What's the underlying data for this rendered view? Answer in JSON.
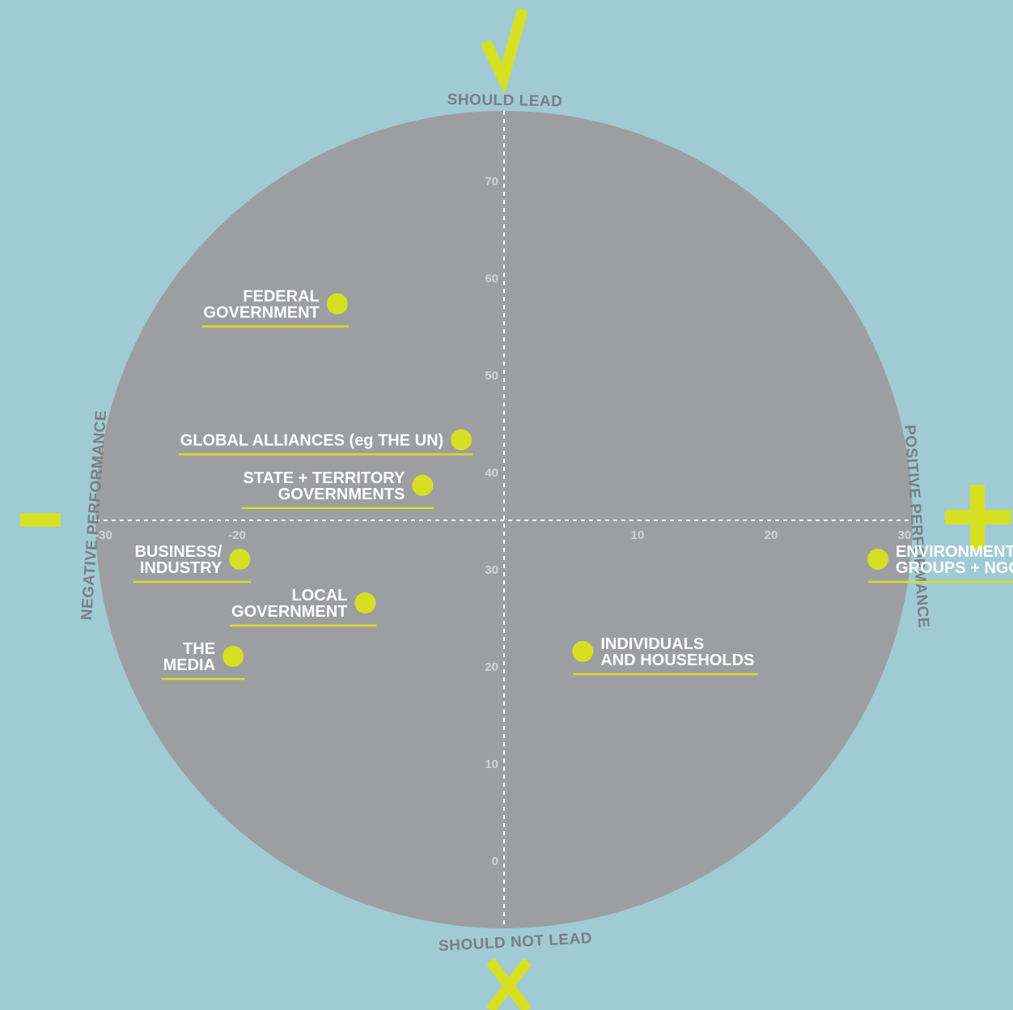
{
  "colors": {
    "background": "#a0cbd5",
    "circle": "#9d9ea1",
    "accent": "#d7df23",
    "axis_title": "#7a7d82",
    "tick": "#d2d3d5",
    "label": "#ffffff"
  },
  "symbols": {
    "top": "check-icon",
    "bottom": "cross-icon",
    "left": "minus-icon",
    "right": "plus-icon"
  },
  "chart_data": {
    "type": "scatter",
    "axis_titles": {
      "top": "SHOULD LEAD",
      "bottom": "SHOULD NOT  LEAD",
      "left": "NEGATIVE PERFORMANCE",
      "right": "POSITIVE PERFORMANCE"
    },
    "x_ticks": [
      -30,
      -20,
      10,
      20,
      30
    ],
    "y_ticks": [
      0,
      10,
      20,
      30,
      40,
      50,
      60,
      70
    ],
    "xlim": [
      -30,
      30
    ],
    "ylim": [
      -5,
      79
    ],
    "x_cross": 0,
    "y_cross": 35,
    "grid": false,
    "points": [
      {
        "label_lines": [
          "FEDERAL",
          "GOVERNMENT"
        ],
        "x": -12.5,
        "y": 57.3,
        "side": "left"
      },
      {
        "label_lines": [
          "GLOBAL ALLIANCES (eg THE UN)"
        ],
        "x": -3.2,
        "y": 43.3,
        "side": "left"
      },
      {
        "label_lines": [
          "STATE + TERRITORY",
          "GOVERNMENTS"
        ],
        "x": -6.1,
        "y": 38.6,
        "side": "left"
      },
      {
        "label_lines": [
          "BUSINESS/",
          "INDUSTRY"
        ],
        "x": -19.8,
        "y": 31.0,
        "side": "left"
      },
      {
        "label_lines": [
          "LOCAL",
          "GOVERNMENT"
        ],
        "x": -10.4,
        "y": 26.5,
        "side": "left"
      },
      {
        "label_lines": [
          "THE",
          "MEDIA"
        ],
        "x": -20.3,
        "y": 21.0,
        "side": "left"
      },
      {
        "label_lines": [
          "ENVIRONMENTAL",
          "GROUPS + NGOs"
        ],
        "x": 28.0,
        "y": 31.0,
        "side": "right"
      },
      {
        "label_lines": [
          "INDIVIDUALS",
          "AND HOUSEHOLDS"
        ],
        "x": 5.9,
        "y": 21.5,
        "side": "right"
      }
    ]
  }
}
